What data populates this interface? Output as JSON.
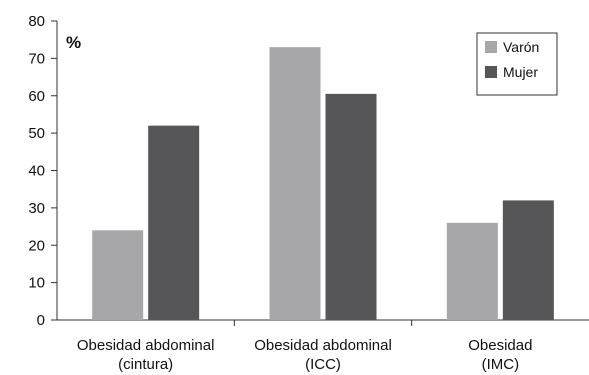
{
  "chart_data": {
    "type": "bar",
    "title": "",
    "xlabel": "",
    "ylabel": "",
    "unit_label": "%",
    "ylim": [
      0,
      80
    ],
    "yticks": [
      0,
      10,
      20,
      30,
      40,
      50,
      60,
      70,
      80
    ],
    "grid": false,
    "legend_position": "top-right",
    "categories": [
      [
        "Obesidad abdominal",
        "(cintura)"
      ],
      [
        "Obesidad abdominal",
        "(ICC)"
      ],
      [
        "Obesidad",
        "(IMC)"
      ]
    ],
    "series": [
      {
        "name": "Varón",
        "color": "#a7a7a9",
        "values": [
          24,
          73,
          26
        ]
      },
      {
        "name": "Mujer",
        "color": "#565658",
        "values": [
          52,
          60.5,
          32
        ]
      }
    ]
  }
}
